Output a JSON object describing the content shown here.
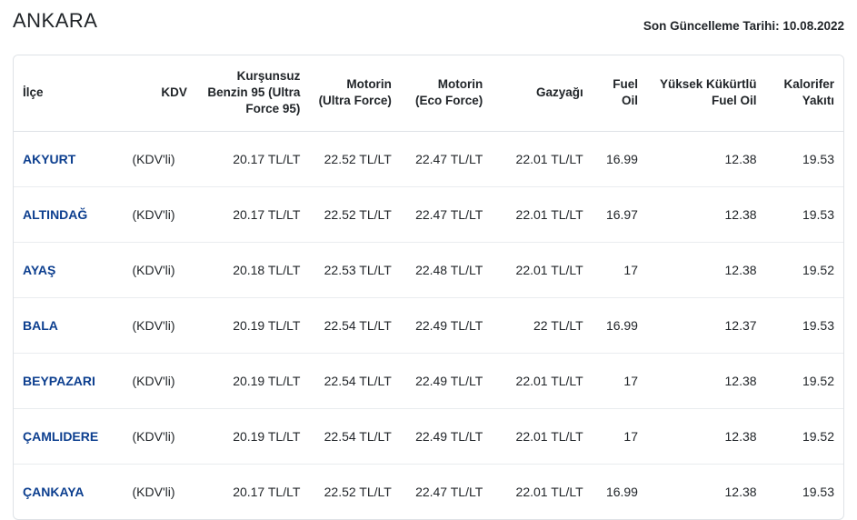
{
  "header": {
    "title": "ANKARA",
    "updated_label": "Son Güncelleme Tarihi: 10.08.2022"
  },
  "columns": [
    {
      "key": "ilce",
      "label": "İlçe",
      "align": "left"
    },
    {
      "key": "kdv",
      "label": "KDV",
      "align": "right"
    },
    {
      "key": "kb95",
      "label": "Kurşunsuz Benzin 95 (Ultra Force 95)",
      "align": "right"
    },
    {
      "key": "muf",
      "label": "Motorin (Ultra Force)",
      "align": "right"
    },
    {
      "key": "meco",
      "label": "Motorin (Eco Force)",
      "align": "right"
    },
    {
      "key": "gaz",
      "label": "Gazyağı",
      "align": "right"
    },
    {
      "key": "fuel",
      "label": "Fuel Oil",
      "align": "right"
    },
    {
      "key": "yks",
      "label": "Yüksek Kükürtlü Fuel Oil",
      "align": "right"
    },
    {
      "key": "kal",
      "label": "Kalorifer Yakıtı",
      "align": "right"
    }
  ],
  "rows": [
    {
      "ilce": "AKYURT",
      "kdv": "(KDV'li)",
      "kb95": "20.17 TL/LT",
      "muf": "22.52 TL/LT",
      "meco": "22.47 TL/LT",
      "gaz": "22.01 TL/LT",
      "fuel": "16.99",
      "yks": "12.38",
      "kal": "19.53"
    },
    {
      "ilce": "ALTINDAĞ",
      "kdv": "(KDV'li)",
      "kb95": "20.17 TL/LT",
      "muf": "22.52 TL/LT",
      "meco": "22.47 TL/LT",
      "gaz": "22.01 TL/LT",
      "fuel": "16.97",
      "yks": "12.38",
      "kal": "19.53"
    },
    {
      "ilce": "AYAŞ",
      "kdv": "(KDV'li)",
      "kb95": "20.18 TL/LT",
      "muf": "22.53 TL/LT",
      "meco": "22.48 TL/LT",
      "gaz": "22.01 TL/LT",
      "fuel": "17",
      "yks": "12.38",
      "kal": "19.52"
    },
    {
      "ilce": "BALA",
      "kdv": "(KDV'li)",
      "kb95": "20.19 TL/LT",
      "muf": "22.54 TL/LT",
      "meco": "22.49 TL/LT",
      "gaz": "22 TL/LT",
      "fuel": "16.99",
      "yks": "12.37",
      "kal": "19.53"
    },
    {
      "ilce": "BEYPAZARI",
      "kdv": "(KDV'li)",
      "kb95": "20.19 TL/LT",
      "muf": "22.54 TL/LT",
      "meco": "22.49 TL/LT",
      "gaz": "22.01 TL/LT",
      "fuel": "17",
      "yks": "12.38",
      "kal": "19.52"
    },
    {
      "ilce": "ÇAMLIDERE",
      "kdv": "(KDV'li)",
      "kb95": "20.19 TL/LT",
      "muf": "22.54 TL/LT",
      "meco": "22.49 TL/LT",
      "gaz": "22.01 TL/LT",
      "fuel": "17",
      "yks": "12.38",
      "kal": "19.52"
    },
    {
      "ilce": "ÇANKAYA",
      "kdv": "(KDV'li)",
      "kb95": "20.17 TL/LT",
      "muf": "22.52 TL/LT",
      "meco": "22.47 TL/LT",
      "gaz": "22.01 TL/LT",
      "fuel": "16.99",
      "yks": "12.38",
      "kal": "19.53"
    }
  ]
}
